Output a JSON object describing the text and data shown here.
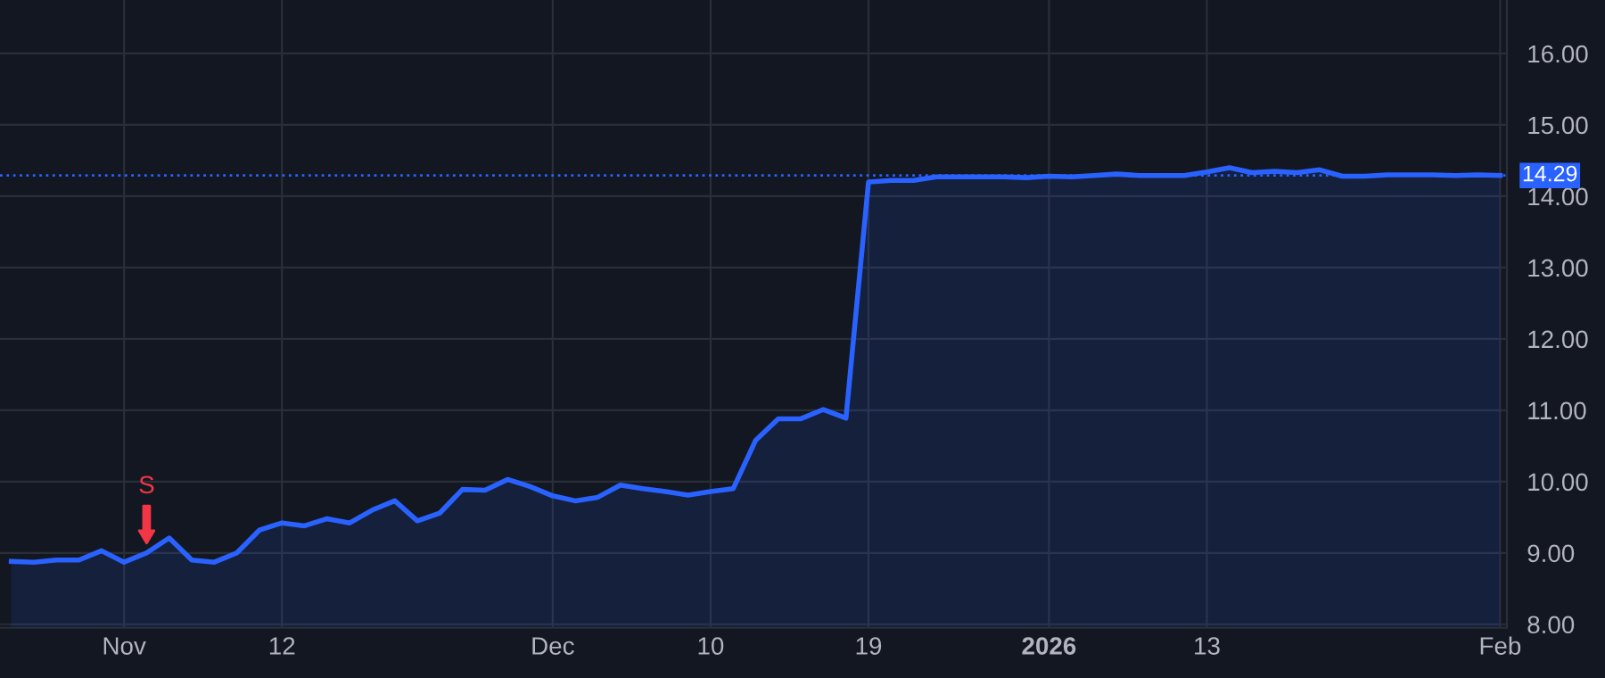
{
  "chart_data": {
    "type": "area",
    "categories": [
      null,
      null,
      null,
      null,
      null,
      "Nov",
      null,
      null,
      null,
      null,
      null,
      null,
      "12",
      null,
      null,
      null,
      null,
      null,
      null,
      null,
      null,
      null,
      null,
      null,
      "Dec",
      null,
      null,
      null,
      null,
      null,
      null,
      "10",
      null,
      null,
      null,
      null,
      null,
      null,
      "19",
      null,
      null,
      null,
      null,
      null,
      null,
      null,
      "2026",
      null,
      null,
      null,
      null,
      null,
      null,
      "13",
      null,
      null,
      null,
      null,
      null,
      null,
      null,
      null,
      null,
      null,
      null,
      null,
      "Feb"
    ],
    "series": [
      {
        "color": "#2962ff",
        "values": [
          8.88,
          8.87,
          8.9,
          8.9,
          9.03,
          8.87,
          9.0,
          9.21,
          8.9,
          8.87,
          9.0,
          9.32,
          9.42,
          9.38,
          9.48,
          9.42,
          9.6,
          9.73,
          9.45,
          9.56,
          9.89,
          9.88,
          10.03,
          9.93,
          9.8,
          9.73,
          9.78,
          9.95,
          9.9,
          9.86,
          9.81,
          9.86,
          9.9,
          10.58,
          10.88,
          10.88,
          11.01,
          10.89,
          14.2,
          14.22,
          14.22,
          14.27,
          14.27,
          14.27,
          14.27,
          14.26,
          14.28,
          14.27,
          14.29,
          14.31,
          14.29,
          14.29,
          14.29,
          14.34,
          14.4,
          14.33,
          14.35,
          14.33,
          14.37,
          14.28,
          14.28,
          14.3,
          14.3,
          14.3,
          14.29,
          14.3,
          14.29
        ]
      }
    ],
    "ylim": [
      7.95,
      16.75
    ],
    "yticks": [
      {
        "value": 8,
        "label": "8.00"
      },
      {
        "value": 9,
        "label": "9.00"
      },
      {
        "value": 10,
        "label": "10.00"
      },
      {
        "value": 11,
        "label": "11.00"
      },
      {
        "value": 12,
        "label": "12.00"
      },
      {
        "value": 13,
        "label": "13.00"
      },
      {
        "value": 14,
        "label": "14.00"
      },
      {
        "value": 15,
        "label": "15.00"
      },
      {
        "value": 16,
        "label": "16.00"
      }
    ],
    "ref_lines": [
      {
        "axis": "y",
        "value": 14.29,
        "label": "14.29",
        "color": "#2962ff",
        "line_style": "dotted"
      }
    ],
    "annotations": [
      {
        "text": "S",
        "y": 9.0
      }
    ],
    "grid": true,
    "legend": false,
    "marker": "none",
    "line_style": "solid"
  }
}
